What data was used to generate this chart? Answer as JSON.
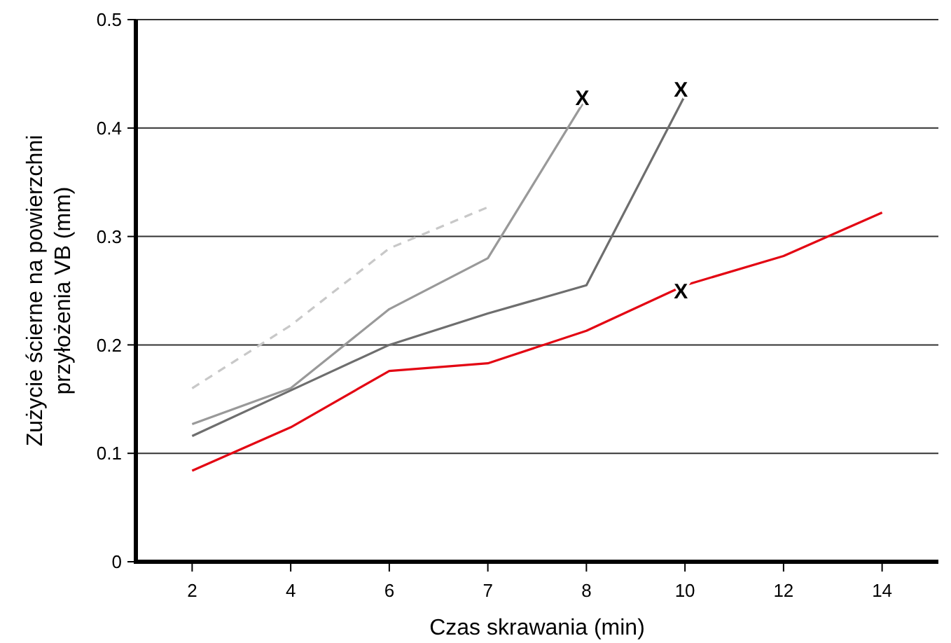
{
  "chart_data": {
    "type": "line",
    "xlabel": "Czas skrawania (min)",
    "ylabel": "Zużycie ścierne na powierzchni\nprzyłożenia VB (mm)",
    "categories": [
      "2",
      "4",
      "6",
      "7",
      "8",
      "10",
      "12",
      "14"
    ],
    "ylim": [
      0,
      0.5
    ],
    "yticks": [
      0,
      0.1,
      0.2,
      0.3,
      0.4,
      0.5
    ],
    "grid": "y",
    "marker": "none",
    "series": [
      {
        "color": "#c8c8c8",
        "line_style": "dashed",
        "values": [
          0.16,
          0.218,
          0.289,
          0.327,
          null,
          null,
          null,
          null
        ]
      },
      {
        "color": "#999999",
        "line_style": "solid",
        "values": [
          0.127,
          0.16,
          0.233,
          0.28,
          0.428,
          null,
          null,
          null
        ]
      },
      {
        "color": "#6e6e6e",
        "line_style": "solid",
        "values": [
          0.116,
          0.158,
          0.2,
          0.229,
          0.255,
          0.43,
          null,
          null
        ]
      },
      {
        "color": "#e30613",
        "line_style": "solid",
        "values": [
          0.084,
          0.124,
          0.176,
          0.183,
          0.213,
          0.255,
          0.282,
          0.322
        ]
      }
    ],
    "annotations": [
      {
        "text": "X",
        "x": "8",
        "y": 0.428
      },
      {
        "text": "X",
        "x": "10",
        "y": 0.436
      },
      {
        "text": "X",
        "x": "10",
        "y": 0.25
      }
    ]
  }
}
